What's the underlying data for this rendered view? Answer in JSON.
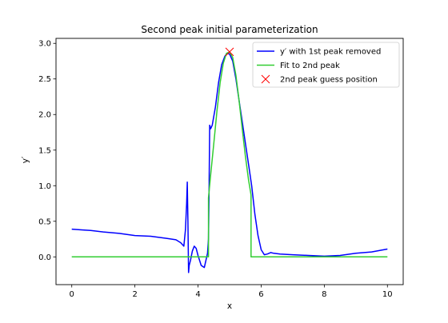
{
  "chart_data": {
    "type": "line",
    "title": "Second peak initial parameterization",
    "xlabel": "x",
    "ylabel": "y′",
    "xlim": [
      -0.5,
      10.5
    ],
    "ylim": [
      -0.39,
      3.07
    ],
    "x_ticks": [
      0,
      2,
      4,
      6,
      8,
      10
    ],
    "x_tick_labels": [
      "0",
      "2",
      "4",
      "6",
      "8",
      "10"
    ],
    "y_ticks": [
      0.0,
      0.5,
      1.0,
      1.5,
      2.0,
      2.5,
      3.0
    ],
    "y_tick_labels": [
      "0.0",
      "0.5",
      "1.0",
      "1.5",
      "2.0",
      "2.5",
      "3.0"
    ],
    "grid": false,
    "legend_position": "upper right",
    "series": [
      {
        "name": "y′ with 1st peak removed",
        "kind": "line",
        "color": "#0000ff",
        "x": [
          0,
          0.3,
          0.6,
          1.0,
          1.5,
          2.0,
          2.5,
          3.0,
          3.3,
          3.45,
          3.55,
          3.6,
          3.64,
          3.66,
          3.68,
          3.7,
          3.72,
          3.76,
          3.82,
          3.88,
          3.94,
          4.0,
          4.1,
          4.2,
          4.3,
          4.33,
          4.35,
          4.37,
          4.4,
          4.45,
          4.55,
          4.65,
          4.75,
          4.85,
          4.92,
          5.0,
          5.1,
          5.2,
          5.3,
          5.4,
          5.5,
          5.6,
          5.7,
          5.8,
          5.9,
          6.0,
          6.1,
          6.2,
          6.3,
          6.4,
          6.6,
          7.0,
          7.5,
          8.0,
          8.5,
          9.0,
          9.5,
          10.0
        ],
        "y": [
          0.39,
          0.38,
          0.37,
          0.35,
          0.33,
          0.3,
          0.29,
          0.26,
          0.24,
          0.2,
          0.15,
          0.38,
          0.75,
          1.05,
          0.5,
          -0.22,
          -0.12,
          -0.05,
          0.08,
          0.15,
          0.12,
          0.02,
          -0.12,
          -0.15,
          0.05,
          0.25,
          1.0,
          1.85,
          1.8,
          1.85,
          2.1,
          2.45,
          2.7,
          2.82,
          2.86,
          2.85,
          2.75,
          2.5,
          2.2,
          1.9,
          1.6,
          1.3,
          1.0,
          0.6,
          0.3,
          0.1,
          0.03,
          0.04,
          0.06,
          0.05,
          0.04,
          0.03,
          0.02,
          0.01,
          0.02,
          0.05,
          0.07,
          0.11
        ]
      },
      {
        "name": "Fit to 2nd peak",
        "kind": "line",
        "color": "#32cd32",
        "x": [
          0,
          4.33,
          4.33,
          4.4,
          4.5,
          4.6,
          4.7,
          4.8,
          4.9,
          5.0,
          5.1,
          5.2,
          5.3,
          5.4,
          5.5,
          5.6,
          5.68,
          5.68,
          10
        ],
        "y": [
          0,
          0,
          0.83,
          1.15,
          1.6,
          2.05,
          2.45,
          2.72,
          2.86,
          2.88,
          2.8,
          2.55,
          2.2,
          1.8,
          1.42,
          1.08,
          0.87,
          0,
          0
        ]
      },
      {
        "name": "2nd peak guess position",
        "kind": "marker",
        "marker": "x",
        "color": "#ff0000",
        "x": [
          5.0
        ],
        "y": [
          2.88
        ]
      }
    ]
  }
}
